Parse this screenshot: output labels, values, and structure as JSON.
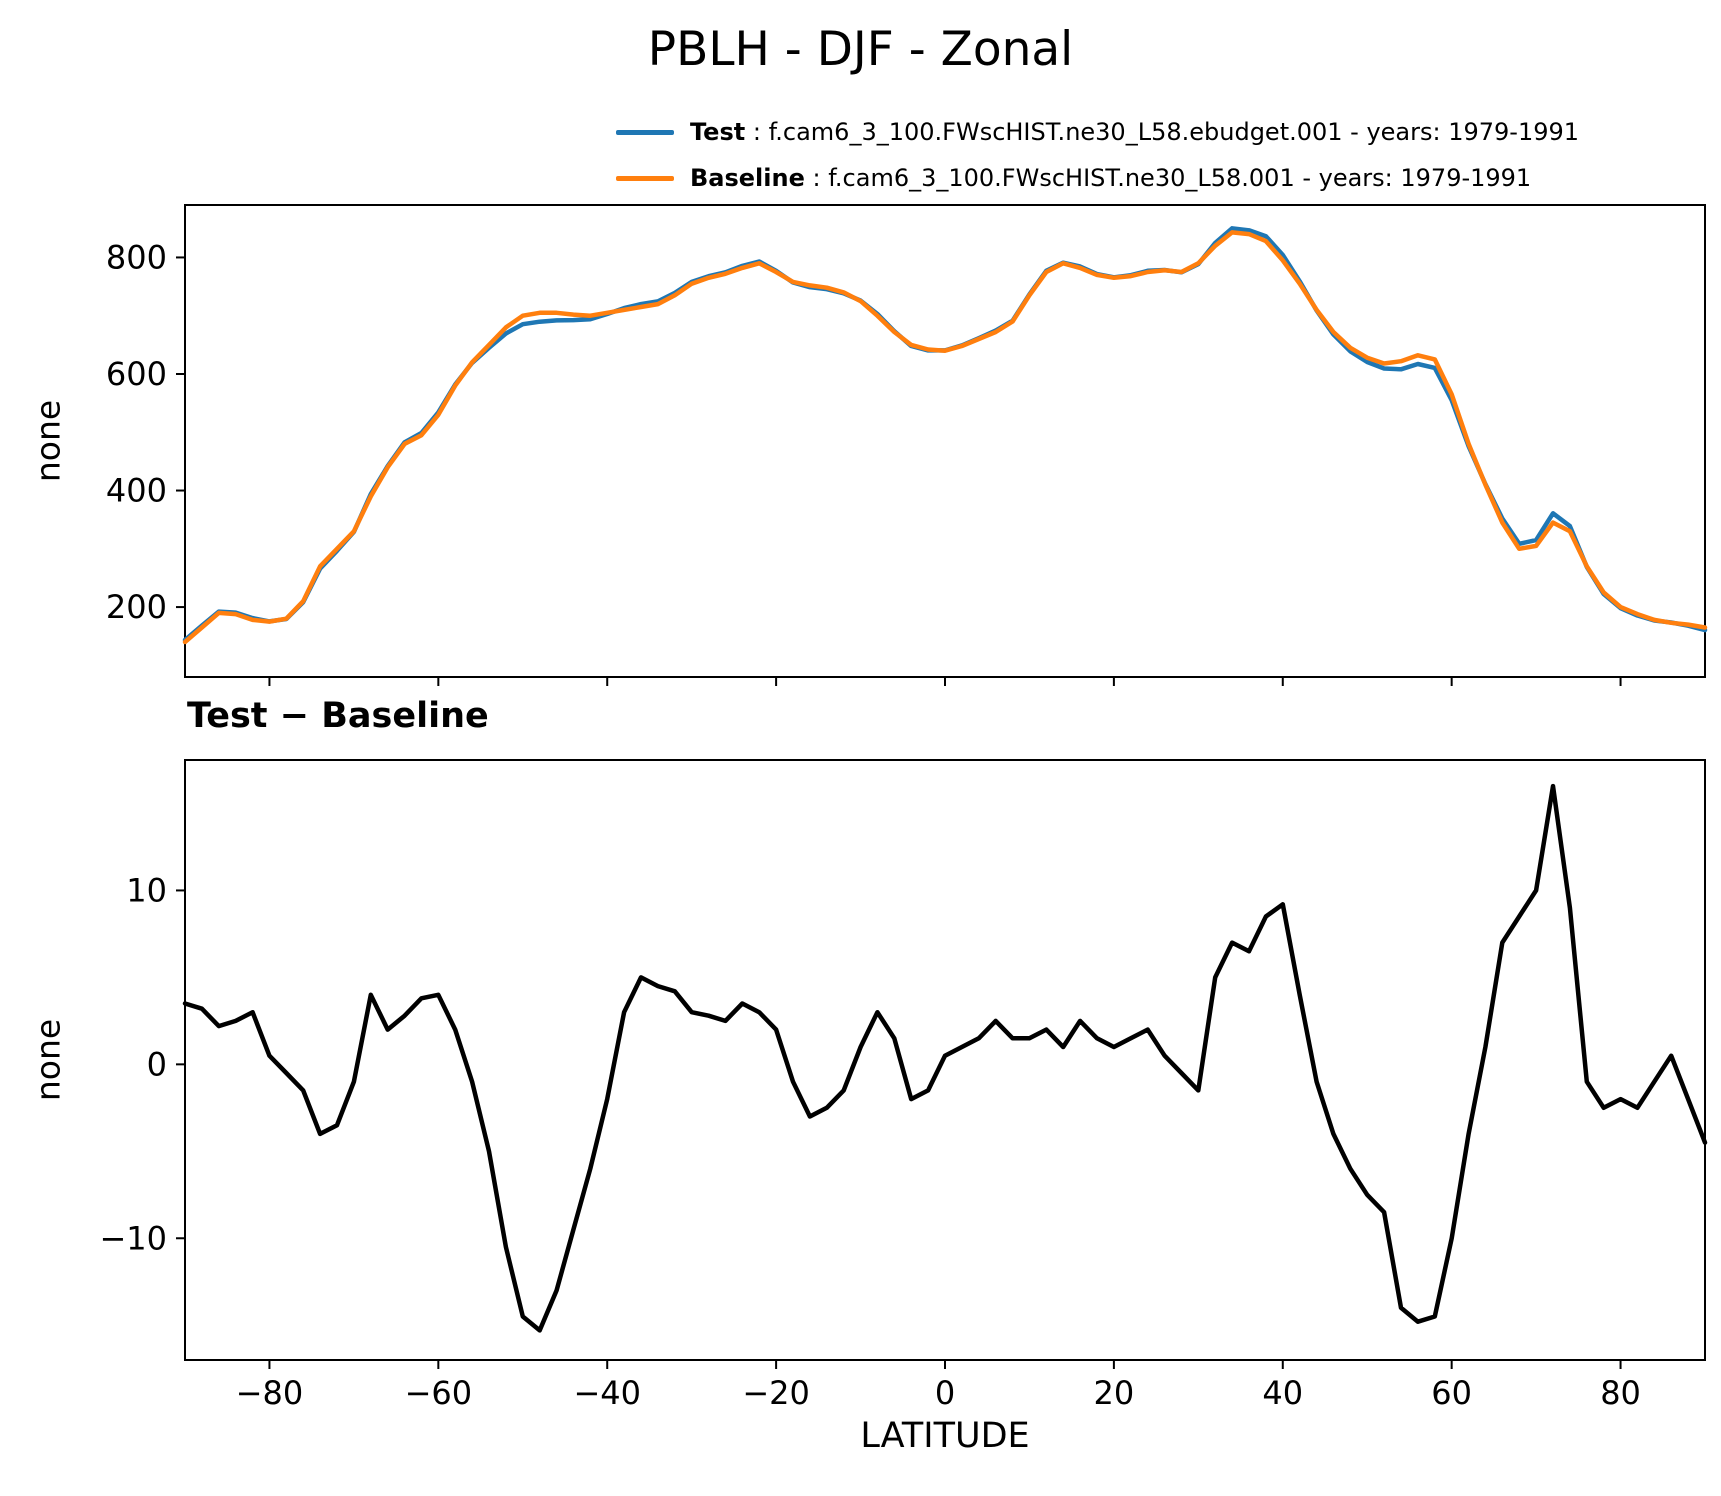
{
  "title": "PBLH - DJF - Zonal",
  "subtitle": "Test − Baseline",
  "xlabel": "LATITUDE",
  "legend": {
    "items": [
      {
        "name": "Test",
        "rest": " : f.cam6_3_100.FWscHIST.ne30_L58.ebudget.001 - years: 1979-1991",
        "color": "#1f77b4"
      },
      {
        "name": "Baseline",
        "rest": " : f.cam6_3_100.FWscHIST.ne30_L58.001 - years: 1979-1991",
        "color": "#ff7f0e"
      }
    ]
  },
  "chart_data": [
    {
      "type": "line",
      "title": "PBLH - DJF - Zonal",
      "xlabel": "",
      "ylabel": "none",
      "xlim": [
        -90,
        90
      ],
      "ylim": [
        80,
        890
      ],
      "xticks": [
        -80,
        -60,
        -40,
        -20,
        0,
        20,
        40,
        60,
        80
      ],
      "yticks": [
        200,
        400,
        600,
        800
      ],
      "x_tick_labels_visible": false,
      "grid": false,
      "legend_position": "top",
      "x": [
        -90,
        -88,
        -86,
        -84,
        -82,
        -80,
        -78,
        -76,
        -74,
        -72,
        -70,
        -68,
        -66,
        -64,
        -62,
        -60,
        -58,
        -56,
        -54,
        -52,
        -50,
        -48,
        -46,
        -44,
        -42,
        -40,
        -38,
        -36,
        -34,
        -32,
        -30,
        -28,
        -26,
        -24,
        -22,
        -20,
        -18,
        -16,
        -14,
        -12,
        -10,
        -8,
        -6,
        -4,
        -2,
        0,
        2,
        4,
        6,
        8,
        10,
        12,
        14,
        16,
        18,
        20,
        22,
        24,
        26,
        28,
        30,
        32,
        34,
        36,
        38,
        40,
        42,
        44,
        46,
        48,
        50,
        52,
        54,
        56,
        58,
        60,
        62,
        64,
        66,
        68,
        70,
        72,
        74,
        76,
        78,
        80,
        82,
        84,
        86,
        88,
        90
      ],
      "series": [
        {
          "name": "Test",
          "color": "#1f77b4",
          "values": [
            143.5,
            168.2,
            192.2,
            190.5,
            181,
            175.5,
            179.5,
            208.5,
            266,
            296.5,
            329,
            394,
            442,
            482.8,
            498.8,
            534,
            582,
            619,
            645,
            669.5,
            685.5,
            689.7,
            692,
            692.5,
            694,
            703,
            713,
            720,
            724.5,
            739.2,
            758,
            767.8,
            774.5,
            785.5,
            793,
            777,
            757,
            749,
            745.5,
            738.5,
            726,
            703,
            673.5,
            648,
            640.5,
            640.5,
            649,
            661.5,
            674.5,
            691.5,
            736.5,
            777,
            791,
            784.5,
            771.5,
            766,
            769.5,
            777,
            778.5,
            774.5,
            788.5,
            825,
            850,
            846.5,
            836.5,
            804.2,
            759,
            709,
            668,
            639,
            620.5,
            609.5,
            608,
            617.2,
            610.5,
            555,
            476,
            411,
            352,
            308.5,
            315,
            361,
            339,
            269,
            222.5,
            198,
            185.5,
            177,
            173.5,
            168,
            160.5
          ]
        },
        {
          "name": "Baseline",
          "color": "#ff7f0e",
          "values": [
            140,
            165,
            190,
            188,
            178,
            175,
            180,
            210,
            270,
            300,
            330,
            390,
            440,
            480,
            495,
            530,
            580,
            620,
            650,
            680,
            700,
            705,
            705,
            702,
            700,
            705,
            710,
            715,
            720,
            735,
            755,
            765,
            772,
            782,
            790,
            775,
            758,
            752,
            748,
            740,
            725,
            700,
            672,
            650,
            642,
            640,
            648,
            660,
            672,
            690,
            735,
            775,
            790,
            782,
            770,
            765,
            768,
            775,
            778,
            775,
            790,
            820,
            843,
            840,
            828,
            795,
            755,
            710,
            672,
            645,
            628,
            618,
            622,
            632,
            625,
            565,
            480,
            410,
            345,
            300,
            305,
            345,
            330,
            270,
            225,
            200,
            188,
            178,
            173,
            170,
            165
          ]
        }
      ]
    },
    {
      "type": "line",
      "title": "Test − Baseline",
      "xlabel": "LATITUDE",
      "ylabel": "none",
      "xlim": [
        -90,
        90
      ],
      "ylim": [
        -17,
        17.5
      ],
      "xticks": [
        -80,
        -60,
        -40,
        -20,
        0,
        20,
        40,
        60,
        80
      ],
      "yticks": [
        -10,
        0,
        10
      ],
      "x_tick_labels_visible": true,
      "grid": false,
      "x": [
        -90,
        -88,
        -86,
        -84,
        -82,
        -80,
        -78,
        -76,
        -74,
        -72,
        -70,
        -68,
        -66,
        -64,
        -62,
        -60,
        -58,
        -56,
        -54,
        -52,
        -50,
        -48,
        -46,
        -44,
        -42,
        -40,
        -38,
        -36,
        -34,
        -32,
        -30,
        -28,
        -26,
        -24,
        -22,
        -20,
        -18,
        -16,
        -14,
        -12,
        -10,
        -8,
        -6,
        -4,
        -2,
        0,
        2,
        4,
        6,
        8,
        10,
        12,
        14,
        16,
        18,
        20,
        22,
        24,
        26,
        28,
        30,
        32,
        34,
        36,
        38,
        40,
        42,
        44,
        46,
        48,
        50,
        52,
        54,
        56,
        58,
        60,
        62,
        64,
        66,
        68,
        70,
        72,
        74,
        76,
        78,
        80,
        82,
        84,
        86,
        88,
        90
      ],
      "series": [
        {
          "name": "Test - Baseline",
          "color": "#000000",
          "values": [
            3.5,
            3.2,
            2.2,
            2.5,
            3.0,
            0.5,
            -0.5,
            -1.5,
            -4.0,
            -3.5,
            -1.0,
            4.0,
            2.0,
            2.8,
            3.8,
            4.0,
            2.0,
            -1.0,
            -5.0,
            -10.5,
            -14.5,
            -15.3,
            -13.0,
            -9.5,
            -6.0,
            -2.0,
            3.0,
            5.0,
            4.5,
            4.2,
            3.0,
            2.8,
            2.5,
            3.5,
            3.0,
            2.0,
            -1.0,
            -3.0,
            -2.5,
            -1.5,
            1.0,
            3.0,
            1.5,
            -2.0,
            -1.5,
            0.5,
            1.0,
            1.5,
            2.5,
            1.5,
            1.5,
            2.0,
            1.0,
            2.5,
            1.5,
            1.0,
            1.5,
            2.0,
            0.5,
            -0.5,
            -1.5,
            5.0,
            7.0,
            6.5,
            8.5,
            9.2,
            4.0,
            -1.0,
            -4.0,
            -6.0,
            -7.5,
            -8.5,
            -14.0,
            -14.8,
            -14.5,
            -10.0,
            -4.0,
            1.0,
            7.0,
            8.5,
            10.0,
            16.0,
            9.0,
            -1.0,
            -2.5,
            -2.0,
            -2.5,
            -1.0,
            0.5,
            -2.0,
            -4.5
          ]
        }
      ]
    }
  ]
}
